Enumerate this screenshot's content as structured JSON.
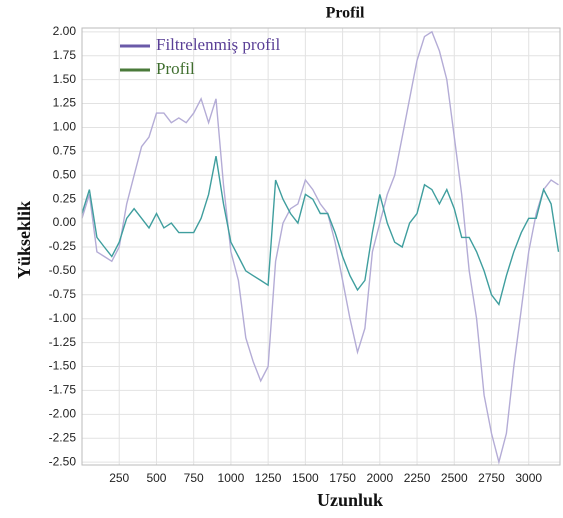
{
  "chart_data": {
    "type": "line",
    "title": "Profil",
    "x_label": "Uzunluk",
    "y_label": "Yükseklik",
    "x": [
      0,
      50,
      100,
      150,
      200,
      250,
      300,
      350,
      400,
      450,
      500,
      550,
      600,
      650,
      700,
      750,
      800,
      850,
      900,
      950,
      1000,
      1050,
      1100,
      1150,
      1200,
      1250,
      1300,
      1350,
      1400,
      1450,
      1500,
      1550,
      1600,
      1650,
      1700,
      1750,
      1800,
      1850,
      1900,
      1950,
      2000,
      2050,
      2100,
      2150,
      2200,
      2250,
      2300,
      2350,
      2400,
      2450,
      2500,
      2550,
      2600,
      2650,
      2700,
      2750,
      2800,
      2850,
      2900,
      2950,
      3000,
      3050,
      3100,
      3150,
      3200
    ],
    "series": [
      {
        "name": "Filtrelenmiş profil",
        "color": "#b4acd6",
        "values": [
          0.05,
          0.3,
          -0.3,
          -0.35,
          -0.4,
          -0.25,
          0.2,
          0.5,
          0.8,
          0.9,
          1.15,
          1.15,
          1.05,
          1.1,
          1.05,
          1.15,
          1.3,
          1.05,
          1.3,
          0.4,
          -0.3,
          -0.6,
          -1.2,
          -1.45,
          -1.65,
          -1.5,
          -0.4,
          0.0,
          0.15,
          0.2,
          0.45,
          0.35,
          0.2,
          0.1,
          -0.2,
          -0.6,
          -1.0,
          -1.35,
          -1.1,
          -0.3,
          0.0,
          0.3,
          0.5,
          0.9,
          1.3,
          1.7,
          1.95,
          2.0,
          1.8,
          1.5,
          0.9,
          0.3,
          -0.5,
          -1.0,
          -1.8,
          -2.2,
          -2.5,
          -2.2,
          -1.5,
          -0.9,
          -0.3,
          0.1,
          0.35,
          0.45,
          0.4
        ]
      },
      {
        "name": "Profil",
        "color": "#3f9e9e",
        "values": [
          0.1,
          0.35,
          -0.15,
          -0.25,
          -0.35,
          -0.2,
          0.05,
          0.15,
          0.05,
          -0.05,
          0.1,
          -0.05,
          0.0,
          -0.1,
          -0.1,
          -0.1,
          0.05,
          0.3,
          0.7,
          0.2,
          -0.2,
          -0.35,
          -0.5,
          -0.55,
          -0.6,
          -0.65,
          0.45,
          0.25,
          0.1,
          0.0,
          0.3,
          0.25,
          0.1,
          0.1,
          -0.1,
          -0.35,
          -0.55,
          -0.7,
          -0.6,
          -0.1,
          0.3,
          0.0,
          -0.2,
          -0.25,
          0.0,
          0.1,
          0.4,
          0.35,
          0.2,
          0.35,
          0.15,
          -0.15,
          -0.15,
          -0.3,
          -0.5,
          -0.75,
          -0.85,
          -0.55,
          -0.3,
          -0.1,
          0.05,
          0.05,
          0.35,
          0.2,
          -0.3
        ]
      }
    ],
    "xlim": [
      0,
      3210
    ],
    "ylim": [
      -2.53,
      2.04
    ],
    "xticks": [
      250,
      500,
      750,
      1000,
      1250,
      1500,
      1750,
      2000,
      2250,
      2500,
      2750,
      3000
    ],
    "yticks": [
      {
        "value": 2,
        "label": "2.00"
      },
      1.75,
      {
        "value": 1.5,
        "label": "1.50"
      },
      1.25,
      {
        "value": 1,
        "label": "1.00"
      },
      0.75,
      {
        "value": 0.5,
        "label": "0.50"
      },
      0.25,
      {
        "value": 0,
        "label": "0.00"
      },
      -0.25,
      {
        "value": -0.5,
        "label": "-0.50"
      },
      -0.75,
      {
        "value": -1,
        "label": "-1.00"
      },
      -1.25,
      {
        "value": -1.5,
        "label": "-1.50"
      },
      -1.75,
      {
        "value": -2,
        "label": "-2.00"
      },
      -2.25,
      {
        "value": -2.5,
        "label": "-2.50"
      }
    ],
    "grid": true,
    "legend": "upper left"
  }
}
